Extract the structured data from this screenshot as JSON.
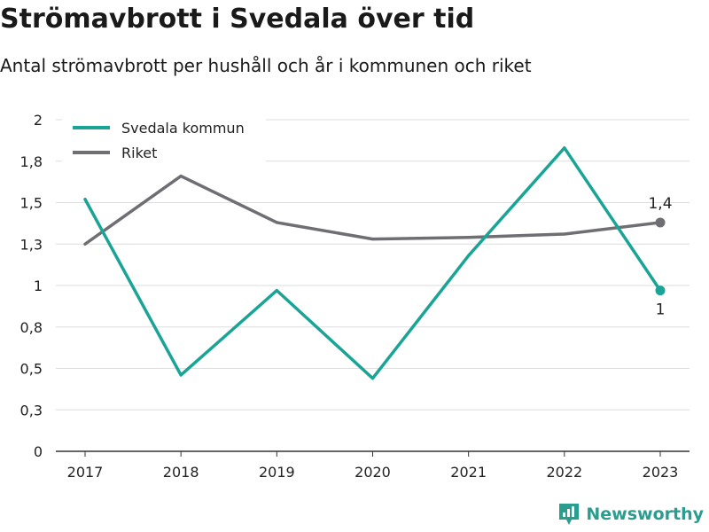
{
  "chart_data": {
    "type": "line",
    "title": "Strömavbrott i Svedala över tid",
    "subtitle": "Antal strömavbrott per hushåll och år i kommunen och riket",
    "x": [
      "2017",
      "2018",
      "2019",
      "2020",
      "2021",
      "2022",
      "2023"
    ],
    "series": [
      {
        "name": "Svedala kommun",
        "color": "#1aa496",
        "values": [
          1.52,
          0.46,
          0.97,
          0.44,
          1.18,
          1.83,
          0.97
        ]
      },
      {
        "name": "Riket",
        "color": "#6e6e73",
        "values": [
          1.25,
          1.66,
          1.38,
          1.28,
          1.29,
          1.31,
          1.38
        ]
      }
    ],
    "ylim": [
      0,
      2
    ],
    "yticks": [
      0,
      0.25,
      0.5,
      0.75,
      1,
      1.25,
      1.5,
      1.75,
      2
    ],
    "ytick_labels": [
      "0",
      "0,3",
      "0,5",
      "0,8",
      "1",
      "1,3",
      "1,5",
      "1,8",
      "2"
    ],
    "annotations": [
      {
        "series": "Riket",
        "x": "2023",
        "label": "1,4"
      },
      {
        "series": "Svedala kommun",
        "x": "2023",
        "label": "1"
      }
    ],
    "grid": true,
    "legend": "top-left"
  },
  "brand": {
    "name": "Newsworthy",
    "icon": "newsworthy-logo-icon",
    "color": "#2a9d8f"
  }
}
